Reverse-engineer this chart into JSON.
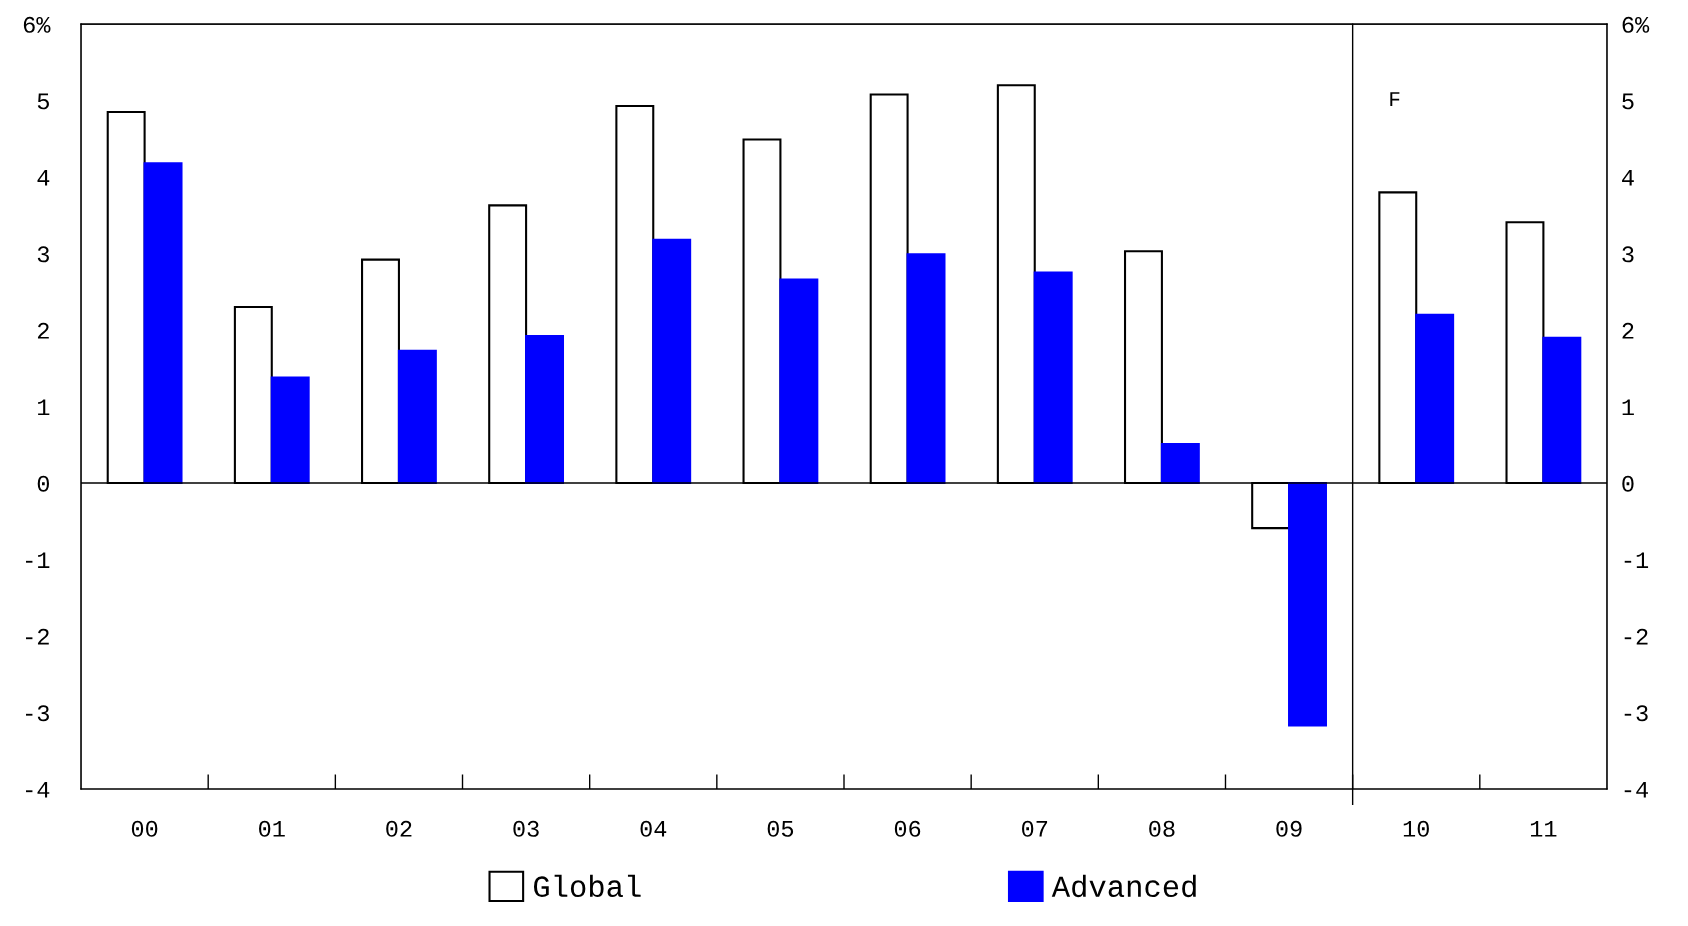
{
  "chart_data": {
    "type": "bar",
    "categories": [
      "00",
      "01",
      "02",
      "03",
      "04",
      "05",
      "06",
      "07",
      "08",
      "09",
      "10",
      "11"
    ],
    "series": [
      {
        "name": "Global",
        "color": "#ffffff",
        "values": [
          4.85,
          2.3,
          2.92,
          3.63,
          4.93,
          4.49,
          5.08,
          5.2,
          3.03,
          -0.59,
          3.8,
          3.41
        ]
      },
      {
        "name": "Advanced",
        "color": "#0000ff",
        "values": [
          4.18,
          1.38,
          1.73,
          1.92,
          3.18,
          2.66,
          2.99,
          2.75,
          0.51,
          -3.17,
          2.2,
          1.9
        ]
      }
    ],
    "ylim": [
      -4,
      6
    ],
    "yticks": [
      -4,
      -3,
      -2,
      -1,
      0,
      1,
      2,
      3,
      4,
      5,
      {
        "value": 6,
        "label": "6%"
      }
    ],
    "y2lim": [
      -4,
      6
    ],
    "y2ticks": [
      -4,
      -3,
      -2,
      -1,
      0,
      1,
      2,
      3,
      4,
      5,
      {
        "value": 6,
        "label": "6%"
      }
    ],
    "annotations": [
      "F"
    ],
    "legend": "bottom"
  }
}
